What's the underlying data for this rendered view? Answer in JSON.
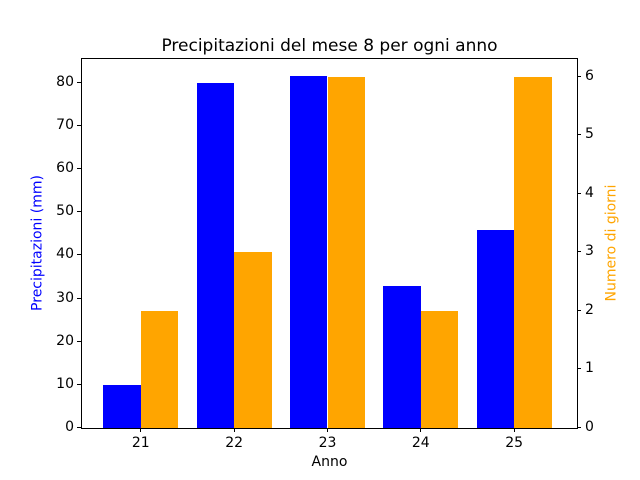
{
  "figure": {
    "background_color": "#ffffff",
    "spine_color": "#000000",
    "tick_text_color": "#000000"
  },
  "chart_data": {
    "type": "bar",
    "title": "Precipitazioni del mese 8 per ogni anno",
    "xlabel": "Anno",
    "categories": [
      "21",
      "22",
      "23",
      "24",
      "25"
    ],
    "series": [
      {
        "name": "Precipitazioni (mm)",
        "axis": "left",
        "color": "#0000ff",
        "values": [
          10,
          80,
          81.5,
          33,
          46
        ]
      },
      {
        "name": "Numero di giorni",
        "axis": "right",
        "color": "#ffa500",
        "values": [
          2,
          3,
          6,
          2,
          6
        ]
      }
    ],
    "left_axis": {
      "label": "Precipitazioni (mm)",
      "color": "#0000ff",
      "ticks": [
        0,
        10,
        20,
        30,
        40,
        50,
        60,
        70,
        80
      ],
      "range": [
        0,
        85.5
      ]
    },
    "right_axis": {
      "label": "Numero di giorni",
      "color": "#ffa500",
      "ticks": [
        0,
        1,
        2,
        3,
        4,
        5,
        6
      ],
      "range": [
        0,
        6.3
      ]
    },
    "grid": false,
    "legend": null,
    "bar_layout": "grouped-dual-axis"
  }
}
